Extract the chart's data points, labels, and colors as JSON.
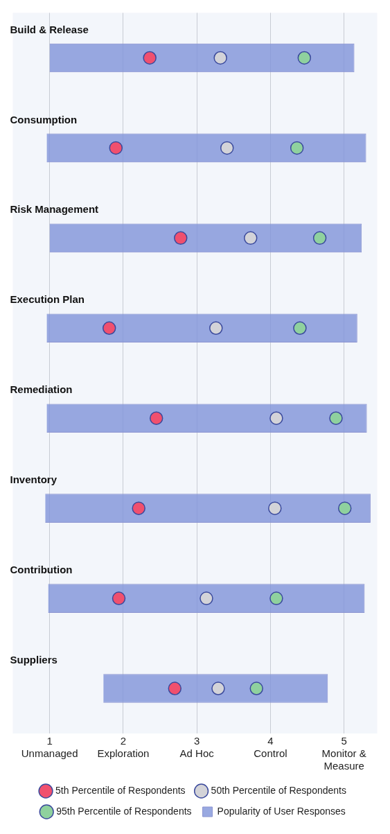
{
  "chart_data": {
    "type": "scatter",
    "orientation": "horizontal",
    "categories": [
      "Build & Release",
      "Consumption",
      "Risk Management",
      "Execution Plan",
      "Remediation",
      "Inventory",
      "Contribution",
      "Suppliers"
    ],
    "series": [
      {
        "name": "5th Percentile of Respondents",
        "color": "#f0506e",
        "values": [
          2.36,
          1.9,
          2.78,
          1.81,
          2.45,
          2.21,
          1.94,
          2.7
        ]
      },
      {
        "name": "50th Percentile of Respondents",
        "color": "#d3d3d8",
        "values": [
          3.32,
          3.41,
          3.73,
          3.26,
          4.08,
          4.06,
          3.13,
          3.29
        ]
      },
      {
        "name": "95th Percentile of Respondents",
        "color": "#8fd19e",
        "values": [
          4.46,
          4.36,
          4.67,
          4.4,
          4.89,
          5.01,
          4.08,
          3.81
        ]
      },
      {
        "name": "Popularity of User Responses",
        "type": "bar",
        "color": "#7f93d9",
        "base": [
          1.0,
          0.96,
          1.0,
          0.96,
          0.96,
          0.94,
          0.98,
          1.73
        ],
        "values": [
          4.14,
          4.34,
          4.24,
          4.22,
          4.35,
          4.42,
          4.3,
          3.05
        ]
      }
    ],
    "xlim": [
      0.5,
      5.45
    ],
    "xticks": [
      {
        "value": 1,
        "label": "1\nUnmanaged"
      },
      {
        "value": 2,
        "label": "2\nExploration"
      },
      {
        "value": 3,
        "label": "3\nAd Hoc"
      },
      {
        "value": 4,
        "label": "4\nControl"
      },
      {
        "value": 5,
        "label": "5\nMonitor &\nMeasure"
      }
    ],
    "grid": "x",
    "legend": "bottom",
    "marker": "circle"
  }
}
